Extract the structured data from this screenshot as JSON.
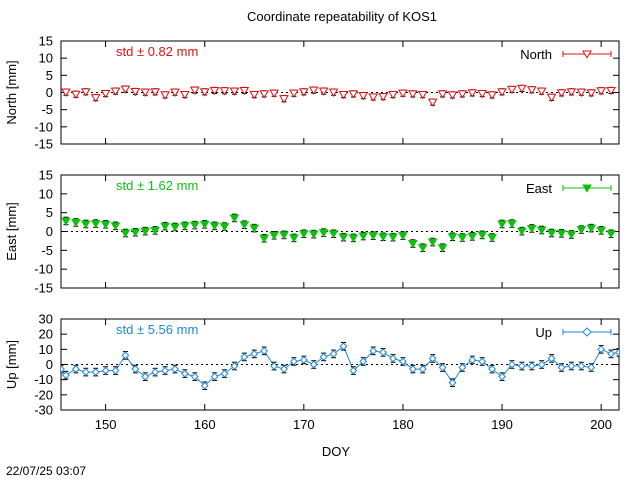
{
  "title": "Coordinate repeatability of KOS1",
  "xlabel": "DOY",
  "timestamp": "22/07/25 03:07",
  "colors": {
    "north": "#e01010",
    "east": "#10c010",
    "up": "#1e88d8",
    "bar": "#000000"
  },
  "chart_data": [
    {
      "type": "scatter",
      "name": "north",
      "legend": "North",
      "std_label": "std ± 0.82 mm",
      "ylabel": "North [mm]",
      "marker": "triangle-down-open",
      "xlim": [
        145.5,
        201.8
      ],
      "ylim": [
        -15,
        15
      ],
      "yticks": [
        15,
        10,
        5,
        0,
        -5,
        -10,
        -15
      ],
      "xticks": [
        150,
        160,
        170,
        180,
        190,
        200
      ],
      "x": [
        146,
        147,
        148,
        149,
        150,
        151,
        152,
        153,
        154,
        155,
        156,
        157,
        158,
        159,
        160,
        161,
        162,
        163,
        164,
        165,
        166,
        167,
        168,
        169,
        170,
        171,
        172,
        173,
        174,
        175,
        176,
        177,
        178,
        179,
        180,
        181,
        182,
        183,
        184,
        185,
        186,
        187,
        188,
        189,
        190,
        191,
        192,
        193,
        194,
        195,
        196,
        197,
        198,
        199,
        200,
        201
      ],
      "y": [
        0.1,
        -0.5,
        0.2,
        -1.5,
        -0.3,
        0.4,
        1.0,
        0.3,
        0.1,
        0.2,
        -0.7,
        0.1,
        -0.6,
        0.7,
        0.2,
        0.6,
        0.5,
        0.4,
        0.6,
        -0.6,
        -0.4,
        -0.2,
        -1.8,
        -0.2,
        0.2,
        0.7,
        0.4,
        0.1,
        -0.6,
        -0.4,
        -0.9,
        -1.3,
        -1.2,
        -0.6,
        -0.2,
        -0.4,
        -0.6,
        -2.8,
        -0.4,
        -0.7,
        -0.4,
        -0.1,
        -0.3,
        -0.7,
        0.2,
        0.9,
        1.2,
        0.8,
        0.4,
        -1.4,
        -0.1,
        0.2,
        0.1,
        -0.1,
        0.5,
        0.6
      ],
      "err": 0.9
    },
    {
      "type": "scatter",
      "name": "east",
      "legend": "East",
      "std_label": "std ± 1.62 mm",
      "ylabel": "East [mm]",
      "marker": "triangle-down-filled",
      "xlim": [
        145.5,
        201.8
      ],
      "ylim": [
        -15,
        15
      ],
      "yticks": [
        15,
        10,
        5,
        0,
        -5,
        -10,
        -15
      ],
      "xticks": [
        150,
        160,
        170,
        180,
        190,
        200
      ],
      "x": [
        146,
        147,
        148,
        149,
        150,
        151,
        152,
        153,
        154,
        155,
        156,
        157,
        158,
        159,
        160,
        161,
        162,
        163,
        164,
        165,
        166,
        167,
        168,
        169,
        170,
        171,
        172,
        173,
        174,
        175,
        176,
        177,
        178,
        179,
        180,
        181,
        182,
        183,
        184,
        185,
        186,
        187,
        188,
        189,
        190,
        191,
        192,
        193,
        194,
        195,
        196,
        197,
        198,
        199,
        200,
        201
      ],
      "y": [
        2.8,
        2.4,
        2.0,
        2.1,
        1.9,
        1.5,
        -0.4,
        -0.2,
        0.1,
        0.3,
        1.4,
        1.2,
        1.5,
        1.7,
        1.9,
        1.5,
        1.3,
        3.6,
        1.8,
        0.9,
        -1.8,
        -1.0,
        -0.9,
        -1.7,
        -0.6,
        -0.7,
        -0.3,
        -0.6,
        -1.5,
        -1.7,
        -1.2,
        -1.1,
        -1.4,
        -1.5,
        -1.1,
        -3.2,
        -4.3,
        -2.8,
        -4.3,
        -1.4,
        -1.6,
        -1.3,
        -0.9,
        -1.6,
        2.0,
        2.1,
        0.1,
        0.8,
        0.4,
        -0.4,
        -0.5,
        -0.8,
        0.5,
        0.9,
        0.3,
        -0.6
      ],
      "err": 1.0
    },
    {
      "type": "scatter",
      "name": "up",
      "legend": "Up",
      "std_label": "std ± 5.56 mm",
      "ylabel": "Up [mm]",
      "marker": "diamond-open",
      "connected": true,
      "xlim": [
        145.5,
        201.8
      ],
      "ylim": [
        -30,
        30
      ],
      "yticks": [
        30,
        20,
        10,
        0,
        -10,
        -20,
        -30
      ],
      "xticks": [
        150,
        160,
        170,
        180,
        190,
        200
      ],
      "xticklabels": [
        "150",
        "160",
        "170",
        "180",
        "190",
        "200"
      ],
      "x": [
        145.5,
        146,
        147,
        148,
        149,
        150,
        151,
        152,
        153,
        154,
        155,
        156,
        157,
        158,
        159,
        160,
        161,
        162,
        163,
        164,
        165,
        166,
        167,
        168,
        169,
        170,
        171,
        172,
        173,
        174,
        175,
        176,
        177,
        178,
        179,
        180,
        181,
        182,
        183,
        184,
        185,
        186,
        187,
        188,
        189,
        190,
        191,
        192,
        193,
        194,
        195,
        196,
        197,
        198,
        199,
        200,
        201,
        201.8
      ],
      "y": [
        -3,
        -7,
        -3,
        -5,
        -5,
        -4,
        -4,
        6,
        -3,
        -8,
        -5,
        -4,
        -3,
        -6,
        -8,
        -14,
        -8,
        -6,
        -1,
        5,
        7,
        9,
        -1,
        -3,
        2,
        3,
        0,
        5,
        7,
        12,
        -4,
        2,
        9,
        8,
        4,
        2,
        -3,
        -3,
        4,
        -2,
        -12,
        -2,
        3,
        2,
        -3,
        -8,
        0,
        -1,
        -1,
        0,
        4,
        -2,
        -1,
        -1,
        -2,
        10,
        7,
        8
      ],
      "err": 2.5
    }
  ]
}
